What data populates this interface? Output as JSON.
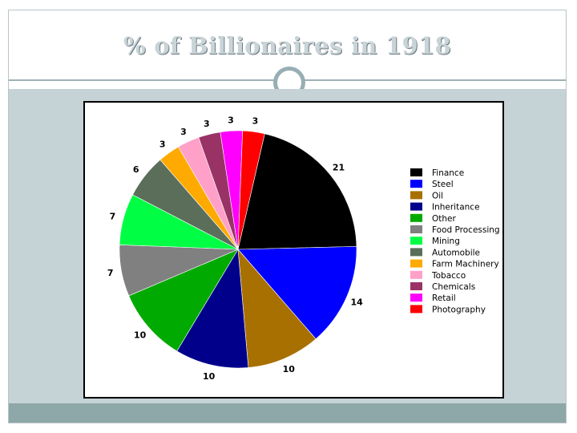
{
  "slide": {
    "title": "% of Billionaires in 1918"
  },
  "colors": {
    "title_text": "#c9d4d8",
    "content_band": "#c5d2d6",
    "footer_band": "#8ea7a9",
    "ornament": "#97aeb4"
  },
  "chart_data": {
    "type": "pie",
    "title": "",
    "legend_position": "right",
    "start_angle_deg": -77,
    "direction": "clockwise",
    "labels": [
      "21",
      "14",
      "10",
      "10",
      "10",
      "7",
      "7",
      "6",
      "3",
      "3",
      "3",
      "3",
      "3"
    ],
    "series": [
      {
        "categories": [
          "Finance",
          "Steel",
          "Oil",
          "Inheritance",
          "Other",
          "Food Processing",
          "Mining",
          "Automobile",
          "Farm Machinery",
          "Tobacco",
          "Chemicals",
          "Retail",
          "Photography"
        ],
        "values": [
          21,
          14,
          10,
          10,
          10,
          7,
          7,
          6,
          3,
          3,
          3,
          3,
          3
        ],
        "colors": [
          "#000000",
          "#0000ff",
          "#a87000",
          "#00008b",
          "#00aa00",
          "#808080",
          "#00ff44",
          "#5a6e5a",
          "#ffaa00",
          "#ffa0c8",
          "#993366",
          "#ff00ff",
          "#ff0000"
        ]
      }
    ]
  }
}
